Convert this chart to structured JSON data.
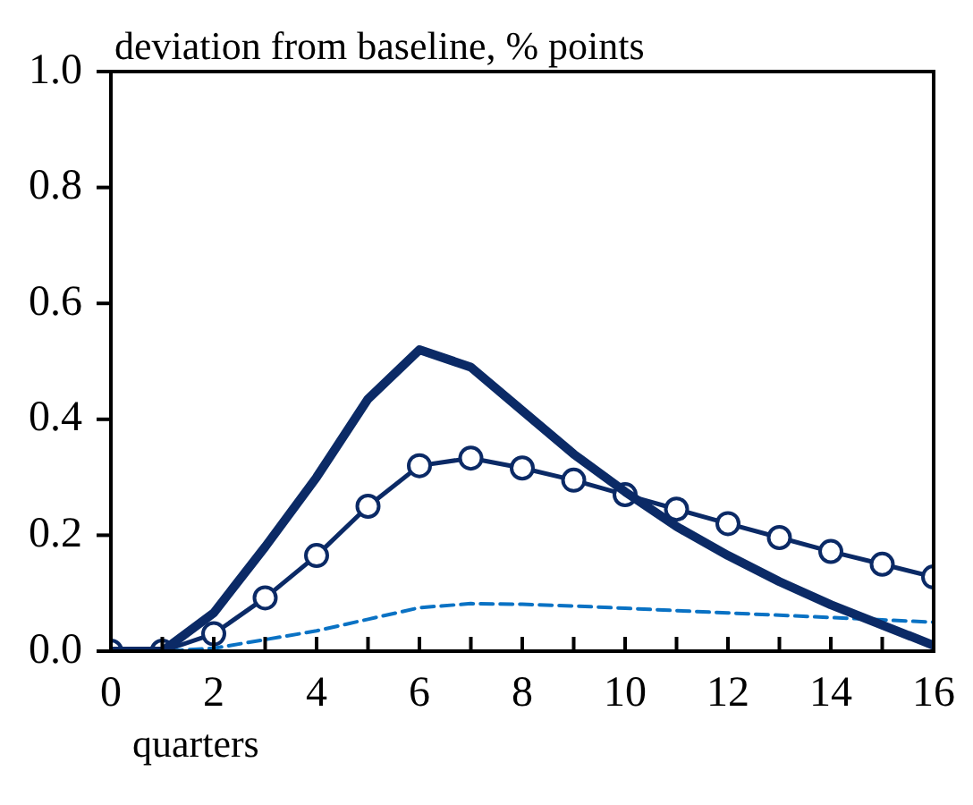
{
  "chart_data": {
    "type": "line",
    "ylabel": "deviation from baseline, % points",
    "xlabel": "quarters",
    "x": [
      0,
      1,
      2,
      3,
      4,
      5,
      6,
      7,
      8,
      9,
      10,
      11,
      12,
      13,
      14,
      15,
      16
    ],
    "series": [
      {
        "color": "#0b2a66",
        "line_style": "solid",
        "marker": "none",
        "values": [
          0,
          0,
          0.066,
          0.18,
          0.3,
          0.435,
          0.52,
          0.49,
          0.415,
          0.34,
          0.275,
          0.215,
          0.165,
          0.12,
          0.08,
          0.045,
          0.01
        ]
      },
      {
        "color": "#0b2a66",
        "line_style": "solid",
        "marker": "circle",
        "values": [
          0,
          0,
          0.03,
          0.092,
          0.165,
          0.25,
          0.32,
          0.333,
          0.316,
          0.295,
          0.27,
          0.245,
          0.22,
          0.196,
          0.172,
          0.15,
          0.128
        ]
      },
      {
        "color": "#0a72c4",
        "line_style": "dashed",
        "marker": "none",
        "values": [
          0,
          0,
          0.005,
          0.02,
          0.035,
          0.055,
          0.075,
          0.082,
          0.081,
          0.078,
          0.074,
          0.07,
          0.066,
          0.062,
          0.058,
          0.054,
          0.05
        ]
      }
    ],
    "xlim": [
      0,
      16
    ],
    "ylim": [
      0,
      1
    ],
    "xticks": [
      0,
      {
        "value": 1,
        "label": null
      },
      2,
      {
        "value": 3,
        "label": null
      },
      4,
      {
        "value": 5,
        "label": null
      },
      6,
      {
        "value": 7,
        "label": null
      },
      8,
      {
        "value": 9,
        "label": null
      },
      10,
      {
        "value": 11,
        "label": null
      },
      12,
      {
        "value": 13,
        "label": null
      },
      14,
      {
        "value": 15,
        "label": null
      },
      16
    ],
    "yticks": [
      {
        "value": 0,
        "label": "0.0"
      },
      {
        "value": 0.2,
        "label": "0.2"
      },
      {
        "value": 0.4,
        "label": "0.4"
      },
      {
        "value": 0.6,
        "label": "0.6"
      },
      {
        "value": 0.8,
        "label": "0.8"
      },
      {
        "value": 1,
        "label": "1.0"
      }
    ],
    "grid": false,
    "legend": false
  }
}
